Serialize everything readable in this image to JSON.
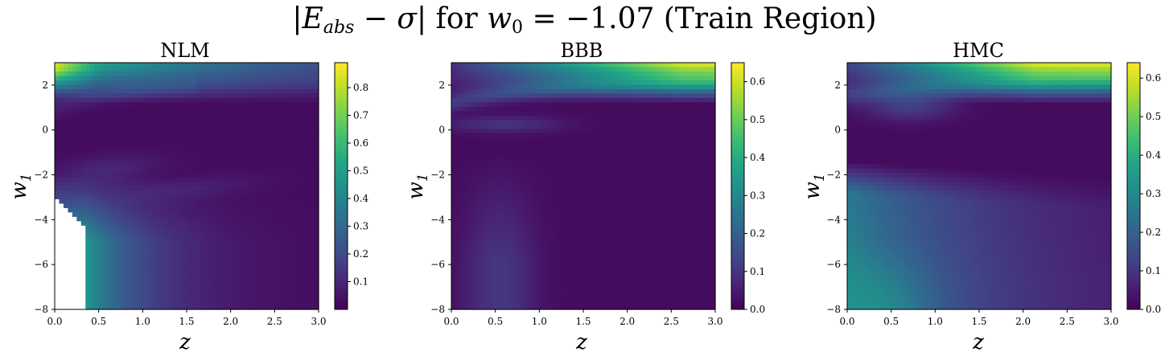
{
  "figure": {
    "suptitle": {
      "abs_open": "|",
      "E": "E",
      "sub": "abs",
      "mid": " − ",
      "sigma": "σ",
      "abs_close": "|",
      "text_for": " for ",
      "w": "w",
      "w_sub": "0",
      "eq": " = −1.07 (Train Region)"
    }
  },
  "chart_data": [
    {
      "type": "heatmap",
      "title": "NLM",
      "xlabel": "z",
      "ylabel": "w",
      "ylabel_sub": "1",
      "xlim": [
        0.0,
        3.0
      ],
      "ylim": [
        -8,
        3
      ],
      "xticks": [
        "0.0",
        "0.5",
        "1.0",
        "1.5",
        "2.0",
        "2.5",
        "3.0"
      ],
      "yticks": [
        "−8",
        "−6",
        "−4",
        "−2",
        "0",
        "2"
      ],
      "colormap": "viridis",
      "colorbar_range": [
        0.0,
        0.89
      ],
      "colorbar_ticks": [
        "0.1",
        "0.2",
        "0.3",
        "0.4",
        "0.5",
        "0.6",
        "0.7",
        "0.8"
      ],
      "undefined_region": "white area for small z and w1 below about −3"
    },
    {
      "type": "heatmap",
      "title": "BBB",
      "xlabel": "z",
      "ylabel": "w",
      "ylabel_sub": "1",
      "xlim": [
        0.0,
        3.0
      ],
      "ylim": [
        -8,
        3
      ],
      "xticks": [
        "0.0",
        "0.5",
        "1.0",
        "1.5",
        "2.0",
        "2.5",
        "3.0"
      ],
      "yticks": [
        "−8",
        "−6",
        "−4",
        "−2",
        "0",
        "2"
      ],
      "colormap": "viridis",
      "colorbar_range": [
        0.0,
        0.65
      ],
      "colorbar_ticks": [
        "0.0",
        "0.1",
        "0.2",
        "0.3",
        "0.4",
        "0.5",
        "0.6"
      ]
    },
    {
      "type": "heatmap",
      "title": "HMC",
      "xlabel": "z",
      "ylabel": "w",
      "ylabel_sub": "1",
      "xlim": [
        0.0,
        3.0
      ],
      "ylim": [
        -8,
        3
      ],
      "xticks": [
        "0.0",
        "0.5",
        "1.0",
        "1.5",
        "2.0",
        "2.5",
        "3.0"
      ],
      "yticks": [
        "−8",
        "−6",
        "−4",
        "−2",
        "0",
        "2"
      ],
      "colormap": "viridis",
      "colorbar_range": [
        0.0,
        0.64
      ],
      "colorbar_ticks": [
        "0.0",
        "0.1",
        "0.2",
        "0.3",
        "0.4",
        "0.5",
        "0.6"
      ]
    }
  ]
}
